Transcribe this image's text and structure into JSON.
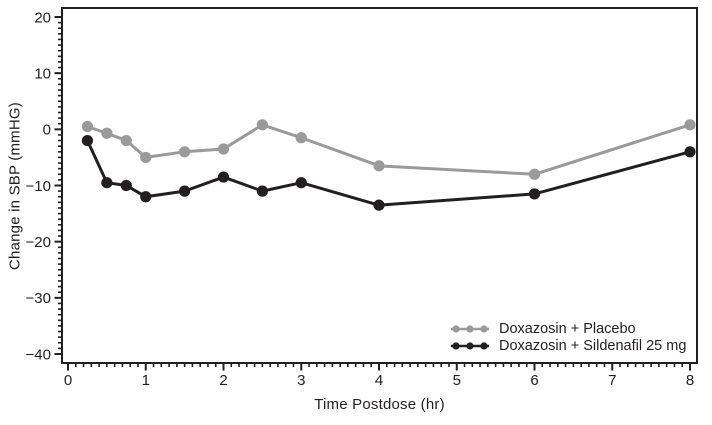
{
  "figure": {
    "background_color": "#ffffff",
    "ink_color": "#231f20"
  },
  "chart_data": {
    "type": "line",
    "xlabel": "Time Postdose (hr)",
    "ylabel": "Change in SBP (mmHG)",
    "x": [
      0.25,
      0.5,
      0.75,
      1,
      1.5,
      2,
      2.5,
      3,
      4,
      6,
      8
    ],
    "series": [
      {
        "name": "Doxazosin + Placebo",
        "color": "#9a9a9a",
        "values": [
          0.5,
          -0.7,
          -2,
          -5,
          -4,
          -3.5,
          0.8,
          -1.5,
          -6.5,
          -8,
          0.8
        ]
      },
      {
        "name": "Doxazosin + Sildenafil 25 mg",
        "color": "#231f20",
        "values": [
          -2,
          -9.5,
          -10,
          -12,
          -11,
          -8.5,
          -11,
          -9.5,
          -13.5,
          -11.5,
          -4
        ]
      }
    ],
    "xlim": [
      0,
      8
    ],
    "ylim": [
      -40,
      20
    ],
    "x_major_ticks": [
      0,
      1,
      2,
      3,
      4,
      5,
      6,
      7,
      8
    ],
    "y_major_ticks": [
      20,
      10,
      0,
      -10,
      -20,
      -30,
      -40
    ],
    "x_minor_step": 0.1,
    "y_minor_step": 1,
    "grid": false,
    "marker": "circle",
    "legend_position": "inside-bottom-right"
  }
}
